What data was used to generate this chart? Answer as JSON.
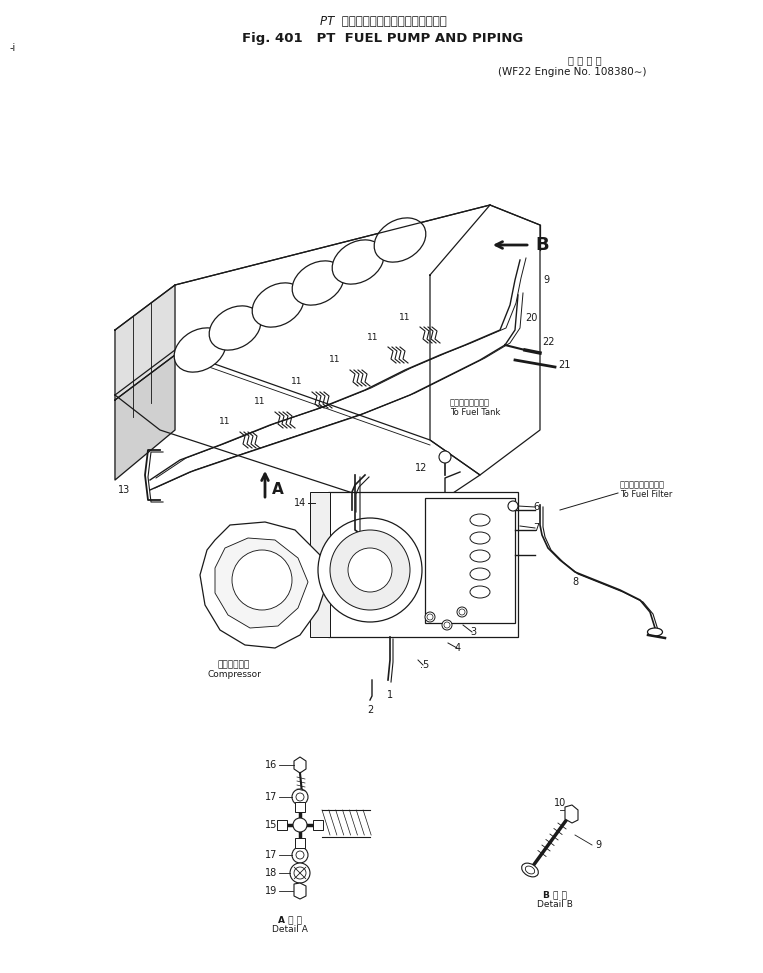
{
  "title_jp": "PT  フェエルポンプおよびパイピング",
  "title_en": "Fig. 401   PT  FUEL PUMP AND PIPING",
  "subtitle_jp": "適 用 号 機",
  "subtitle_en": "(WF22 Engine No. 108380∼)",
  "bg_color": "#ffffff",
  "ink_color": "#1a1a1a",
  "detail_a_jp": "A 詳 細",
  "detail_a_en": "Detail A",
  "detail_b_jp": "B 詳 細",
  "detail_b_en": "Detail B",
  "label_compressor_jp": "コンプレッサ",
  "label_compressor_en": "Compressor",
  "label_fuel_tank_jp": "フェエルタンクへ",
  "label_fuel_tank_en": "To Fuel Tank",
  "label_fuel_filter_jp": "フェエルフィルダへ",
  "label_fuel_filter_en": "To Fuel Filter",
  "marker_i": "-i"
}
